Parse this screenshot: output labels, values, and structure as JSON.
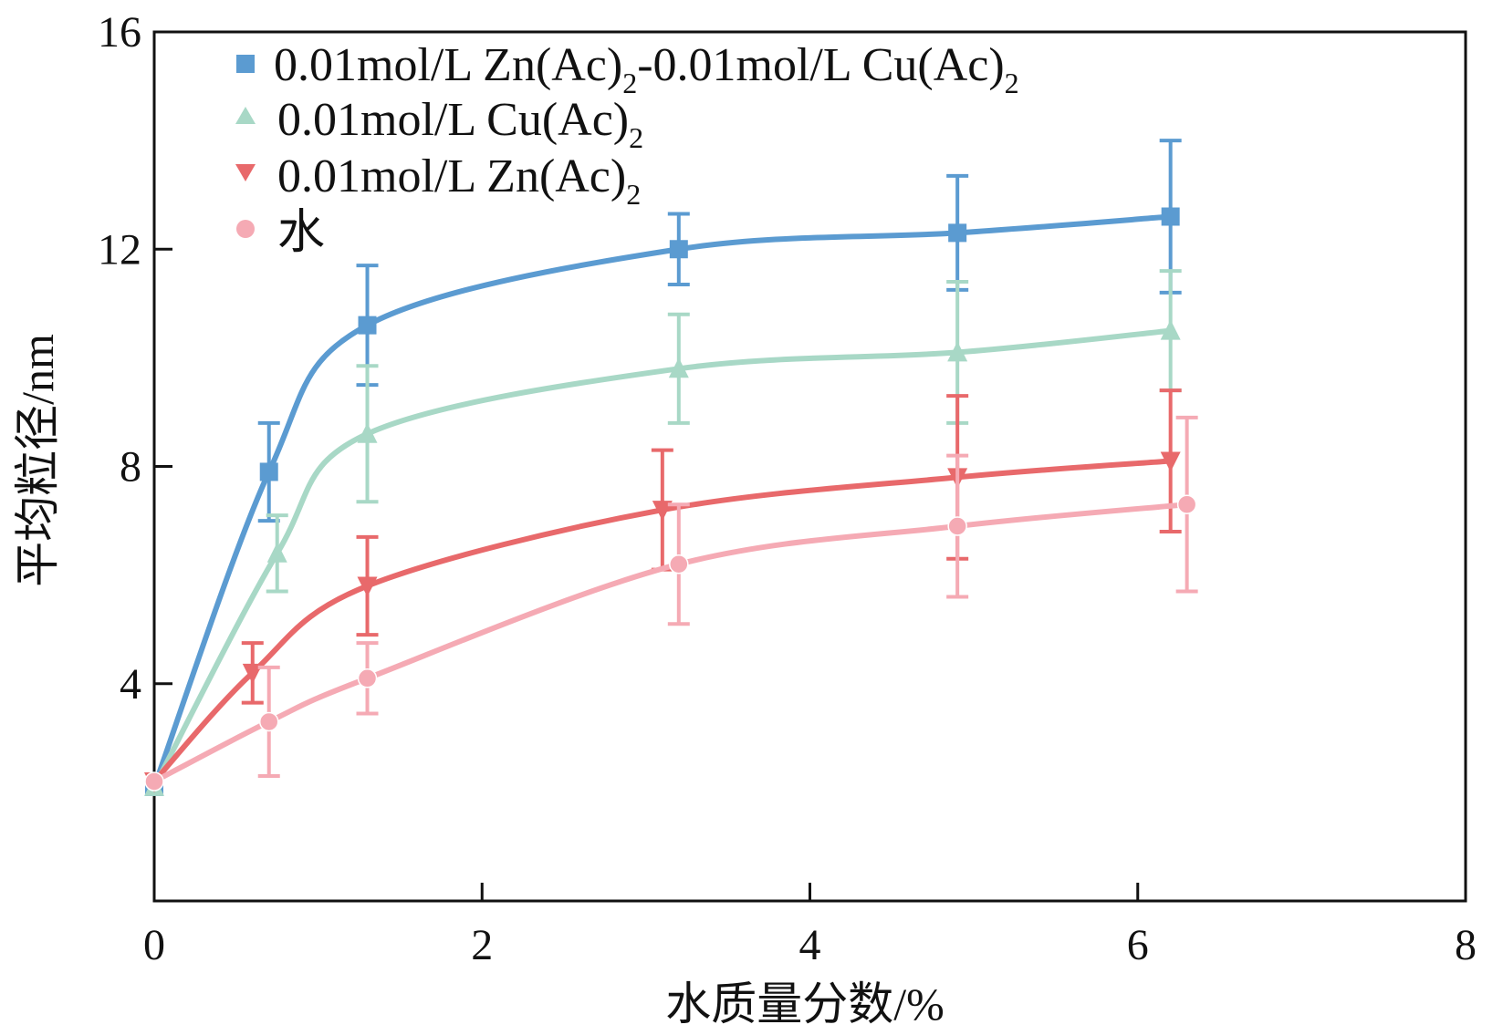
{
  "chart_data": {
    "type": "line",
    "title": "",
    "xlabel": "水质量分数/%",
    "ylabel": "平均粒径/nm",
    "xlim": [
      0,
      8
    ],
    "ylim": [
      0,
      16
    ],
    "xticks": [
      0,
      2,
      4,
      6,
      8
    ],
    "yticks": [
      4,
      8,
      12,
      16
    ],
    "xtick_labels": [
      "0",
      "2",
      "4",
      "6",
      "8"
    ],
    "ytick_labels": [
      "4",
      "8",
      "12",
      "16"
    ],
    "grid": false,
    "legend_position": "top-left",
    "series": [
      {
        "name": "0.01mol/L Zn(Ac)2-0.01mol/L Cu(Ac)2",
        "label_main": "0.01mol/L Zn(Ac)",
        "label_sub1": "2",
        "label_mid": "-0.01mol/L Cu(Ac)",
        "label_sub2": "2",
        "color": "#5b9bd1",
        "marker": "square",
        "x": [
          0,
          0.7,
          1.3,
          3.2,
          4.9,
          6.2
        ],
        "y": [
          2.1,
          7.9,
          10.6,
          12.0,
          12.3,
          12.6
        ],
        "err": [
          0,
          0.9,
          1.1,
          0.65,
          1.05,
          1.4
        ]
      },
      {
        "name": "0.01mol/L Cu(Ac)2",
        "label_main": "0.01mol/L Cu(Ac)",
        "label_sub1": "2",
        "color": "#a8d8c6",
        "marker": "triangle-up",
        "x": [
          0,
          0.75,
          1.3,
          3.2,
          4.9,
          6.2
        ],
        "y": [
          2.1,
          6.4,
          8.6,
          9.8,
          10.1,
          10.5
        ],
        "err": [
          0,
          0.7,
          1.25,
          1.0,
          1.3,
          1.1
        ]
      },
      {
        "name": "0.01mol/L Zn(Ac)2",
        "label_main": "0.01mol/L Zn(Ac)",
        "label_sub1": "2",
        "color": "#e8696b",
        "marker": "triangle-down",
        "x": [
          0,
          0.6,
          1.3,
          3.1,
          4.9,
          6.2
        ],
        "y": [
          2.2,
          4.2,
          5.8,
          7.2,
          7.8,
          8.1
        ],
        "err": [
          0,
          0.55,
          0.9,
          1.1,
          1.5,
          1.3
        ]
      },
      {
        "name": "水",
        "label_main": "水",
        "color": "#f5aab4",
        "marker": "circle",
        "x": [
          0,
          0.7,
          1.3,
          3.2,
          4.9,
          6.3
        ],
        "y": [
          2.2,
          3.3,
          4.1,
          6.2,
          6.9,
          7.3
        ],
        "err": [
          0,
          1.0,
          0.65,
          1.1,
          1.3,
          1.6
        ]
      }
    ]
  }
}
